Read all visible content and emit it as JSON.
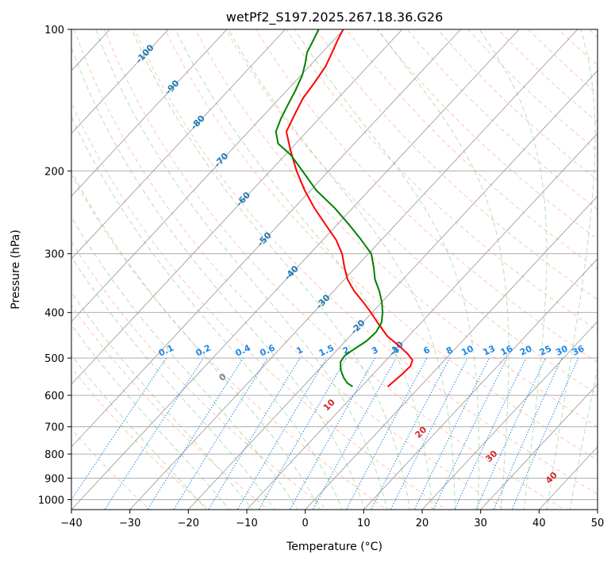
{
  "chart_data": {
    "type": "line",
    "subtype": "skew-t log-p diagram",
    "title": "wetPf2_S197.2025.267.18.36.G26",
    "xlabel": "Temperature (°C)",
    "ylabel": "Pressure (hPa)",
    "xlim": [
      -40,
      50
    ],
    "ylim": [
      1050,
      100
    ],
    "x_ticks": [
      -40,
      -30,
      -20,
      -10,
      0,
      10,
      20,
      30,
      40,
      50
    ],
    "x_tick_labels": [
      "−40",
      "−30",
      "−20",
      "−10",
      "0",
      "10",
      "20",
      "30",
      "40",
      "50"
    ],
    "y_ticks": [
      1000,
      900,
      800,
      700,
      600,
      500,
      400,
      300,
      200,
      100
    ],
    "y_tick_labels": [
      "1000",
      "900",
      "800",
      "700",
      "600",
      "500",
      "400",
      "300",
      "200",
      "100"
    ],
    "skew_c_per_decade": 75,
    "colors": {
      "temperature": "#ff0000",
      "dewpoint": "#008000",
      "isotherm": "#a0a0a0",
      "dry_adiabat": "#ff9f80",
      "moist_adiabat": "#7fbf7f",
      "mixing_ratio": "#1e88e5",
      "isotherm_label": "#1f77b4",
      "mixing_label": "#1e88e5",
      "moist_label": "#d62728",
      "lcl_label": "#7f7f7f",
      "frame": "#000000"
    },
    "series": [
      {
        "name": "Temperature",
        "color": "#ff0000",
        "points": [
          {
            "p": 575,
            "t": -5.5
          },
          {
            "p": 560,
            "t": -5.3
          },
          {
            "p": 540,
            "t": -5.0
          },
          {
            "p": 520,
            "t": -4.9
          },
          {
            "p": 505,
            "t": -5.5
          },
          {
            "p": 490,
            "t": -7.3
          },
          {
            "p": 470,
            "t": -10.2
          },
          {
            "p": 450,
            "t": -13.5
          },
          {
            "p": 420,
            "t": -17.5
          },
          {
            "p": 400,
            "t": -20.2
          },
          {
            "p": 380,
            "t": -23.2
          },
          {
            "p": 360,
            "t": -26.5
          },
          {
            "p": 340,
            "t": -29.5
          },
          {
            "p": 320,
            "t": -32.0
          },
          {
            "p": 300,
            "t": -34.5
          },
          {
            "p": 280,
            "t": -37.8
          },
          {
            "p": 260,
            "t": -42.0
          },
          {
            "p": 240,
            "t": -46.5
          },
          {
            "p": 220,
            "t": -51.0
          },
          {
            "p": 200,
            "t": -55.5
          },
          {
            "p": 180,
            "t": -60.0
          },
          {
            "p": 165,
            "t": -63.5
          },
          {
            "p": 150,
            "t": -65.0
          },
          {
            "p": 140,
            "t": -66.0
          },
          {
            "p": 130,
            "t": -66.5
          },
          {
            "p": 120,
            "t": -67.2
          },
          {
            "p": 112,
            "t": -68.3
          },
          {
            "p": 105,
            "t": -69.4
          },
          {
            "p": 100,
            "t": -70.1
          }
        ]
      },
      {
        "name": "Dewpoint",
        "color": "#008000",
        "points": [
          {
            "p": 575,
            "t": -11.5
          },
          {
            "p": 565,
            "t": -13.0
          },
          {
            "p": 550,
            "t": -14.5
          },
          {
            "p": 530,
            "t": -16.2
          },
          {
            "p": 510,
            "t": -17.5
          },
          {
            "p": 495,
            "t": -17.8
          },
          {
            "p": 480,
            "t": -17.3
          },
          {
            "p": 460,
            "t": -16.4
          },
          {
            "p": 440,
            "t": -16.2
          },
          {
            "p": 420,
            "t": -16.8
          },
          {
            "p": 400,
            "t": -18.2
          },
          {
            "p": 380,
            "t": -20.0
          },
          {
            "p": 360,
            "t": -22.2
          },
          {
            "p": 340,
            "t": -24.8
          },
          {
            "p": 320,
            "t": -27.0
          },
          {
            "p": 300,
            "t": -29.5
          },
          {
            "p": 280,
            "t": -33.5
          },
          {
            "p": 260,
            "t": -38.0
          },
          {
            "p": 240,
            "t": -43.0
          },
          {
            "p": 220,
            "t": -49.0
          },
          {
            "p": 200,
            "t": -54.5
          },
          {
            "p": 185,
            "t": -59.0
          },
          {
            "p": 175,
            "t": -63.0
          },
          {
            "p": 165,
            "t": -65.3
          },
          {
            "p": 155,
            "t": -66.5
          },
          {
            "p": 145,
            "t": -67.5
          },
          {
            "p": 135,
            "t": -68.5
          },
          {
            "p": 125,
            "t": -69.8
          },
          {
            "p": 118,
            "t": -71.2
          },
          {
            "p": 112,
            "t": -72.6
          },
          {
            "p": 106,
            "t": -73.4
          },
          {
            "p": 100,
            "t": -74.3
          }
        ]
      }
    ],
    "isotherm_labels": [
      {
        "text": "-100",
        "t": -100,
        "p": 113
      },
      {
        "text": "-90",
        "t": -90,
        "p": 133
      },
      {
        "text": "-80",
        "t": -80,
        "p": 158
      },
      {
        "text": "-70",
        "t": -70,
        "p": 190
      },
      {
        "text": "-60",
        "t": -60,
        "p": 230
      },
      {
        "text": "-50",
        "t": -50,
        "p": 280
      },
      {
        "text": "-40",
        "t": -40,
        "p": 330
      },
      {
        "text": "-30",
        "t": -30,
        "p": 380
      },
      {
        "text": "-20",
        "t": -20,
        "p": 430
      },
      {
        "text": "-10",
        "t": -10,
        "p": 478
      }
    ],
    "mixing_ratio_lines": [
      0.1,
      0.2,
      0.4,
      0.6,
      1,
      1.5,
      2,
      3,
      4,
      6,
      8,
      10,
      13,
      16,
      20,
      25,
      30,
      36
    ],
    "mixing_ratio_labels": [
      "0.1",
      "0.2",
      "0.4",
      "0.6",
      "1",
      "1.5",
      "2",
      "3",
      "4",
      "6",
      "8",
      "10",
      "13",
      "16",
      "20",
      "25",
      "30",
      "36"
    ],
    "mixing_label_pressure": 500,
    "moist_adiabat_labels": [
      {
        "text": "0",
        "theta_w": 0,
        "p": 550
      },
      {
        "text": "10",
        "theta_w": 10,
        "p": 630
      },
      {
        "text": "20",
        "theta_w": 20,
        "p": 720
      },
      {
        "text": "30",
        "theta_w": 30,
        "p": 810
      },
      {
        "text": "40",
        "theta_w": 40,
        "p": 900
      }
    ]
  }
}
